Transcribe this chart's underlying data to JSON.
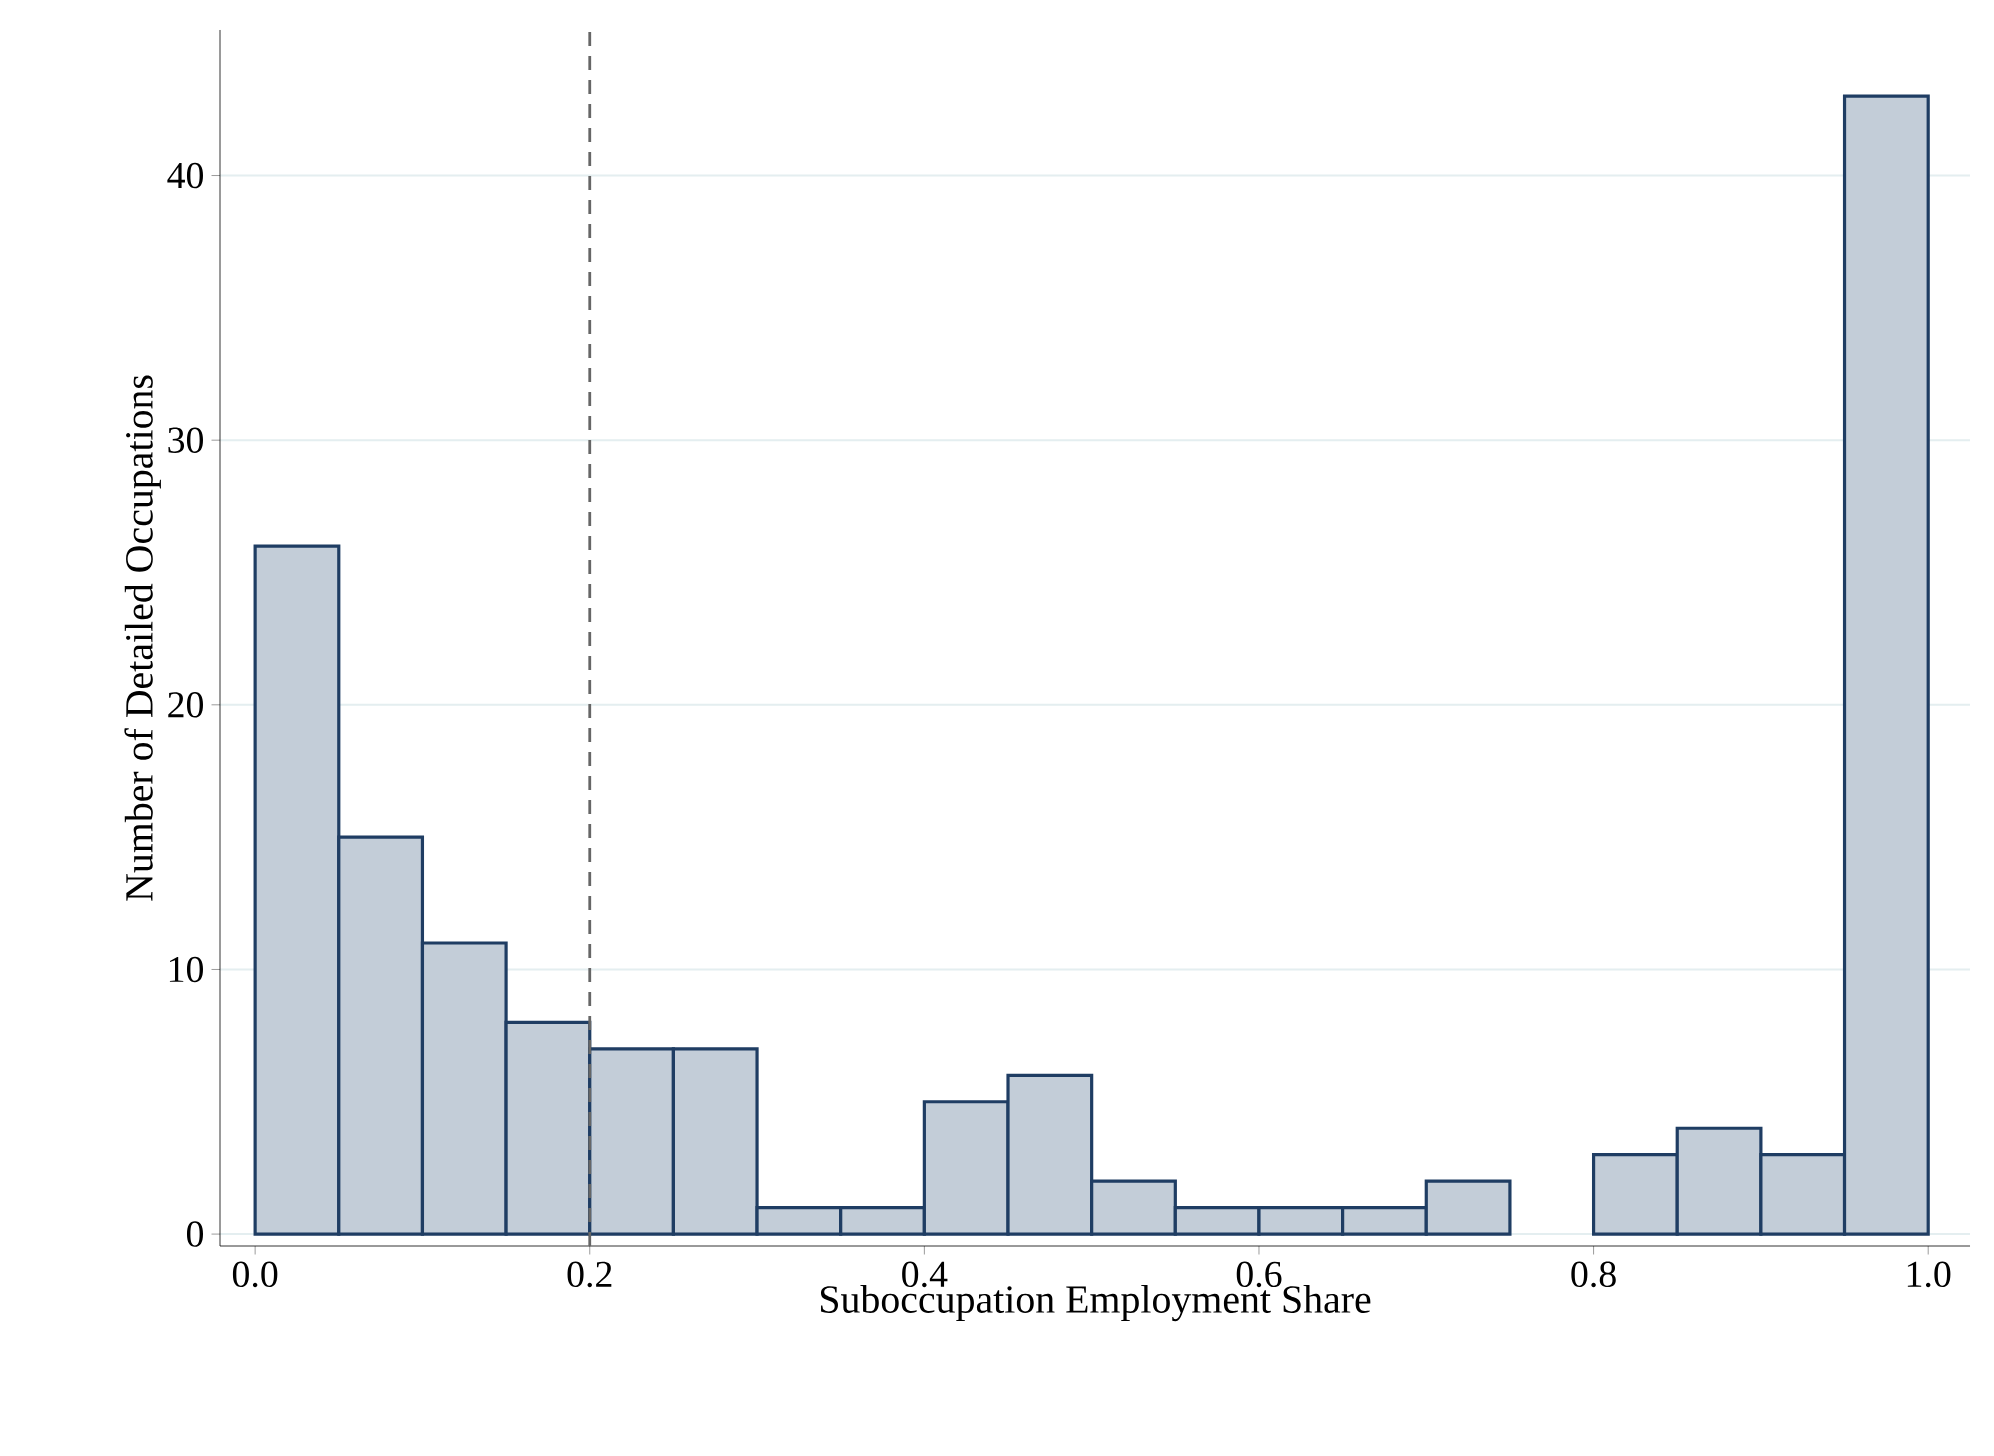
{
  "chart_data": {
    "type": "histogram",
    "xlabel": "Suboccupation Employment Share",
    "ylabel": "Number of Detailed Occupations",
    "bins": [
      0,
      0.05,
      0.1,
      0.15,
      0.2,
      0.25,
      0.3,
      0.35,
      0.4,
      0.45,
      0.5,
      0.55,
      0.6,
      0.65,
      0.7,
      0.75,
      0.8,
      0.85,
      0.9,
      0.95,
      1.0
    ],
    "values": [
      26,
      15,
      11,
      8,
      7,
      7,
      1,
      1,
      5,
      6,
      2,
      1,
      1,
      1,
      2,
      0,
      3,
      4,
      3,
      43
    ],
    "color": "#c3cdd8",
    "xlim": [
      -0.021,
      1.025
    ],
    "ylim": [
      -0.45,
      45.5
    ],
    "xticks": [
      {
        "value": 0,
        "label": "0.0"
      },
      0.2,
      0.4,
      0.6,
      0.8,
      {
        "value": 1,
        "label": "1.0"
      }
    ],
    "yticks": [
      0,
      10,
      20,
      30,
      40
    ],
    "grid": "y",
    "ref_lines": [
      {
        "axis": "x",
        "value": 0.2,
        "color": "#666666",
        "line_style": "dashed"
      }
    ]
  }
}
